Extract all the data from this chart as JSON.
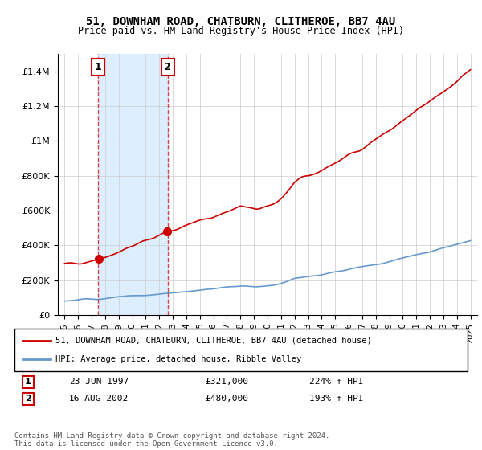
{
  "title": "51, DOWNHAM ROAD, CHATBURN, CLITHEROE, BB7 4AU",
  "subtitle": "Price paid vs. HM Land Registry's House Price Index (HPI)",
  "legend_line1": "51, DOWNHAM ROAD, CHATBURN, CLITHEROE, BB7 4AU (detached house)",
  "legend_line2": "HPI: Average price, detached house, Ribble Valley",
  "footer": "Contains HM Land Registry data © Crown copyright and database right 2024.\nThis data is licensed under the Open Government Licence v3.0.",
  "transaction1_date": "23-JUN-1997",
  "transaction1_price": 321000,
  "transaction1_hpi": "224% ↑ HPI",
  "transaction2_date": "16-AUG-2002",
  "transaction2_price": 480000,
  "transaction2_hpi": "193% ↑ HPI",
  "transaction1_year": 1997.47,
  "transaction2_year": 2002.62,
  "red_line_color": "#cc0000",
  "blue_line_color": "#6699cc",
  "shade_color": "#ddeeff",
  "marker_box_color": "#cc0000",
  "bg_color": "#ffffff",
  "grid_color": "#cccccc",
  "ylim": [
    0,
    1500000
  ],
  "yticks": [
    0,
    200000,
    400000,
    600000,
    800000,
    1000000,
    1200000,
    1400000
  ],
  "ytick_labels": [
    "£0",
    "£200K",
    "£400K",
    "£600K",
    "£800K",
    "£1M",
    "£1.2M",
    "£1.4M"
  ],
  "xlim_start": 1994.5,
  "xlim_end": 2025.5,
  "xticks": [
    1995,
    1996,
    1997,
    1998,
    1999,
    2000,
    2001,
    2002,
    2003,
    2004,
    2005,
    2006,
    2007,
    2008,
    2009,
    2010,
    2011,
    2012,
    2013,
    2014,
    2015,
    2016,
    2017,
    2018,
    2019,
    2020,
    2021,
    2022,
    2023,
    2024,
    2025
  ]
}
